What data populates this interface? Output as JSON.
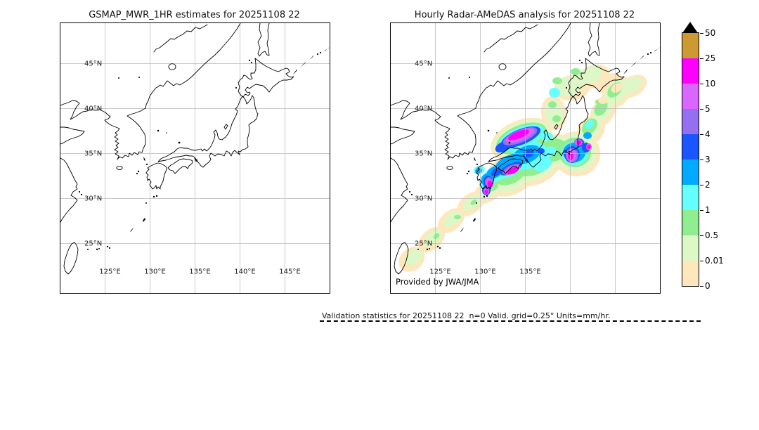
{
  "panels": {
    "left": {
      "title": "GSMAP_MWR_1HR estimates for 20251108 22",
      "lat_labels": [
        "45°N",
        "40°N",
        "35°N",
        "30°N",
        "25°N"
      ],
      "lon_labels": [
        "125°E",
        "130°E",
        "135°E",
        "140°E",
        "145°E"
      ],
      "precipitation_shown": false
    },
    "right": {
      "title": "Hourly Radar-AMeDAS analysis for 20251108 22",
      "lat_labels": [
        "45°N",
        "40°N",
        "35°N",
        "30°N",
        "25°N"
      ],
      "lon_labels": [
        "125°E",
        "130°E",
        "135°E"
      ],
      "credit": "Provided by JWA/JMA",
      "precipitation_shown": true,
      "precipitation_summary": "Rain band from Okinawa northeast across Kyushu, Shikoku and Honshu to Hokkaido; heaviest cores (10-25 mm/hr, magenta) offshore of the San-in coast, over Shikoku/western Kyushu and over the Kanto/Tokai area"
    }
  },
  "colorbar": {
    "units": "mm/hr",
    "tick_labels": [
      "50",
      "25",
      "10",
      "5",
      "4",
      "3",
      "2",
      "1",
      "0.5",
      "0.01",
      "0"
    ],
    "over_value_color": "#000000",
    "segments_top_to_bottom": [
      {
        "range": "25–50",
        "color": "#cc9933"
      },
      {
        "range": "10–25",
        "color": "#ff00ff"
      },
      {
        "range": "5–10",
        "color": "#d966ff"
      },
      {
        "range": "4–5",
        "color": "#9470f0"
      },
      {
        "range": "3–4",
        "color": "#1a56ff"
      },
      {
        "range": "2–3",
        "color": "#00aaff"
      },
      {
        "range": "1–2",
        "color": "#66ffff"
      },
      {
        "range": "0.5–1",
        "color": "#90ee90"
      },
      {
        "range": "0.01–0.5",
        "color": "#ddf8c6"
      },
      {
        "range": "0–0.01",
        "color": "#ffe7bd"
      }
    ]
  },
  "footer": {
    "note": "Validation statistics for 20251108 22  n=0 Valid. grid=0.25° Units=mm/hr."
  },
  "style_colors": {
    "coastline": "#000000",
    "gridline": "#bbbbbb",
    "map_background": "#ffffff"
  }
}
